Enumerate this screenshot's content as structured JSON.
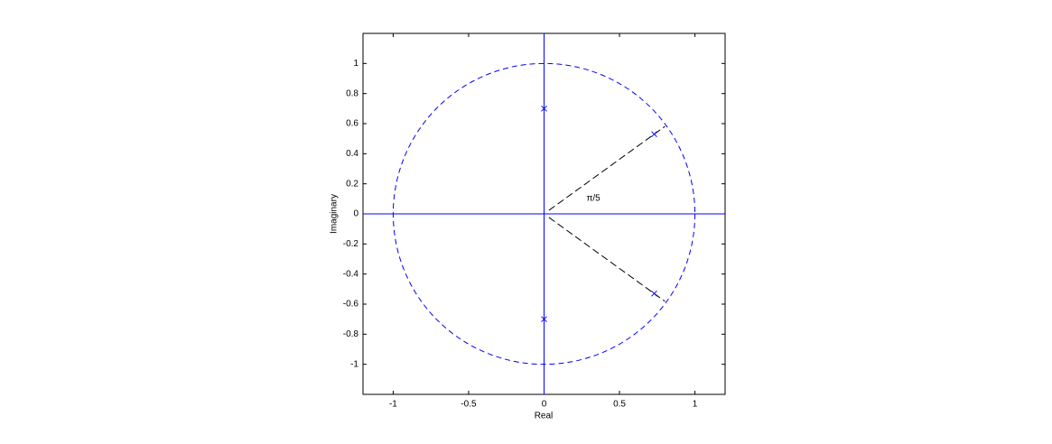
{
  "chart_data": {
    "type": "scatter",
    "x_label": "Real",
    "y_label": "Imaginary",
    "x": [
      0,
      0,
      0.73,
      0.73
    ],
    "y": [
      0.7,
      -0.7,
      0.53,
      -0.53
    ],
    "color": "#0000ff",
    "marker": "x",
    "xlim": [
      -1.2,
      1.2
    ],
    "ylim": [
      -1.2,
      1.2
    ],
    "xticks": [
      -1,
      -0.5,
      0,
      0.5,
      1
    ],
    "yticks": [
      -1,
      -0.8,
      -0.6,
      -0.4,
      -0.2,
      0,
      0.2,
      0.4,
      0.6,
      0.8,
      1
    ],
    "unit_circle": true,
    "annotation": "π/5"
  }
}
